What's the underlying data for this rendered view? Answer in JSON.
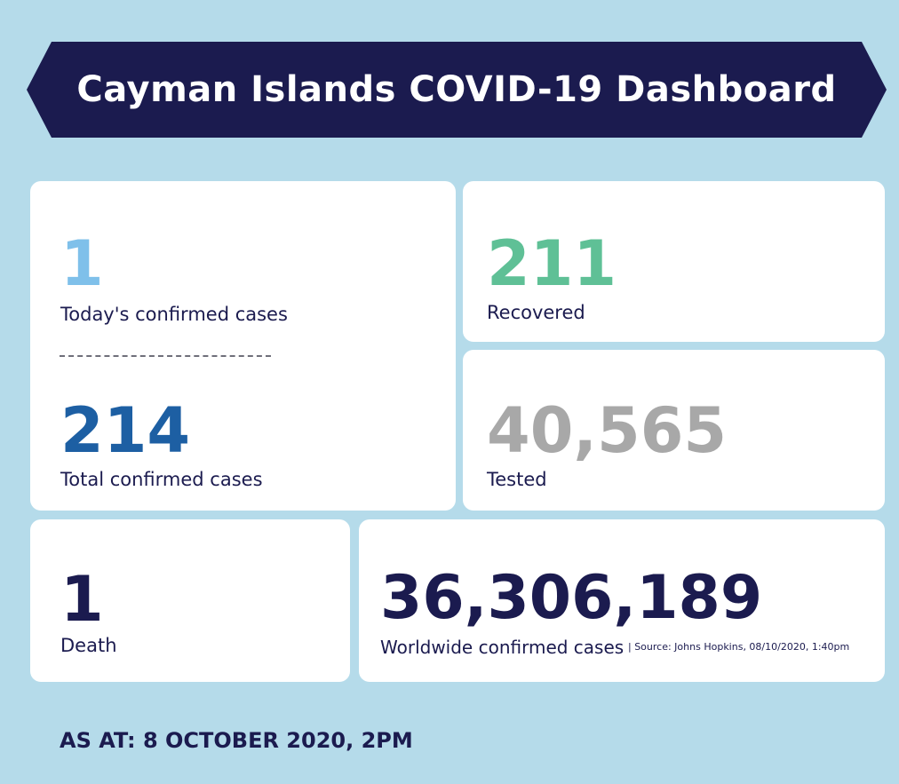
{
  "header": {
    "title": "Cayman Islands COVID-19 Dashboard"
  },
  "cards": {
    "today": {
      "value": "1",
      "label": "Today's confirmed cases"
    },
    "total": {
      "value": "214",
      "label": "Total confirmed cases"
    },
    "recovered": {
      "value": "211",
      "label": "Recovered"
    },
    "tested": {
      "value": "40,565",
      "label": "Tested"
    },
    "death": {
      "value": "1",
      "label": "Death"
    },
    "worldwide": {
      "value": "36,306,189",
      "label": "Worldwide confirmed cases",
      "source": "| Source: Johns Hopkins, 08/10/2020, 1:40pm"
    }
  },
  "footer": {
    "as_at": "AS AT:  8 OCTOBER 2020, 2PM"
  },
  "colors": {
    "background": "#b5dbea",
    "banner": "#1b1b4f",
    "today_value": "#7fc0ea",
    "total_value": "#1d5fa3",
    "recovered_value": "#5fc096",
    "tested_value": "#a8a8a8",
    "dark_value": "#1b1b4f"
  }
}
